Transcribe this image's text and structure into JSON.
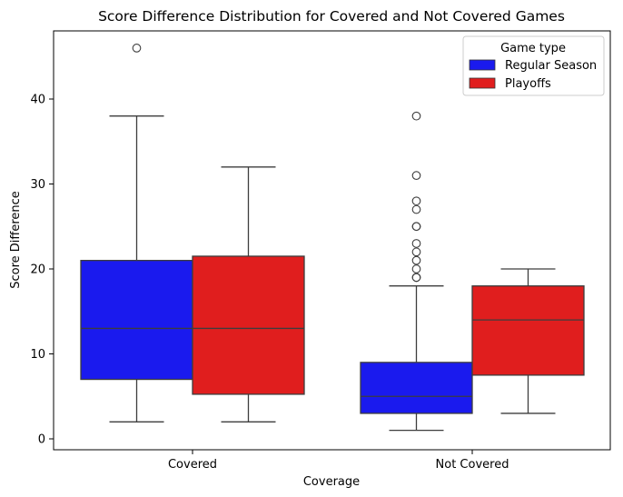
{
  "chart_data": {
    "type": "box",
    "title": "Score Difference Distribution for Covered and Not Covered Games",
    "xlabel": "Coverage",
    "ylabel": "Score Difference",
    "categories": [
      "Covered",
      "Not Covered"
    ],
    "ylim": [
      -1,
      48
    ],
    "yticks": [
      0,
      10,
      20,
      30,
      40
    ],
    "grid": false,
    "legend": {
      "title": "Game type",
      "placement": "top-right"
    },
    "series": [
      {
        "name": "Regular Season",
        "color": "#1a1aee",
        "boxes": [
          {
            "category": "Covered",
            "whisker_low": 2,
            "q1": 7,
            "median": 13,
            "q3": 21,
            "whisker_high": 38,
            "outliers": [
              46
            ]
          },
          {
            "category": "Not Covered",
            "whisker_low": 1,
            "q1": 3,
            "median": 5,
            "q3": 9,
            "whisker_high": 18,
            "outliers": [
              19,
              19,
              20,
              21,
              22,
              23,
              25,
              25,
              27,
              28,
              31,
              38
            ]
          }
        ]
      },
      {
        "name": "Playoffs",
        "color": "#e01e1e",
        "boxes": [
          {
            "category": "Covered",
            "whisker_low": 2,
            "q1": 5.25,
            "median": 13,
            "q3": 21.5,
            "whisker_high": 32,
            "outliers": []
          },
          {
            "category": "Not Covered",
            "whisker_low": 3,
            "q1": 7.5,
            "median": 14,
            "q3": 18,
            "whisker_high": 20,
            "outliers": []
          }
        ]
      }
    ]
  }
}
